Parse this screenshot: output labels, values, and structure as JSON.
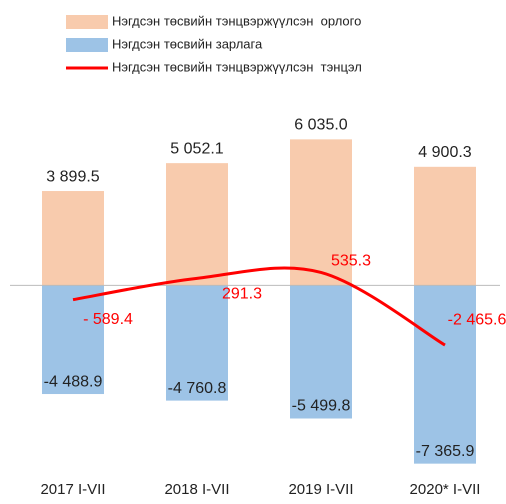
{
  "chart_data": {
    "type": "bar",
    "categories": [
      "2017 I-VII",
      "2018 I-VII",
      "2019 I-VII",
      "2020* I-VII"
    ],
    "series": [
      {
        "name": "Нэгдсэн төсвийн тэнцвэржүүлсэн  орлого",
        "color": "#f8cbad",
        "type": "bar",
        "values": [
          3899.5,
          5052.1,
          6035.0,
          4900.3
        ],
        "value_labels": [
          "3 899.5",
          "5 052.1",
          "6 035.0",
          "4 900.3"
        ]
      },
      {
        "name": "Нэгдсэн төсвийн зарлага",
        "color": "#9dc3e6",
        "type": "bar",
        "values": [
          -4488.9,
          -4760.8,
          -5499.8,
          -7365.9
        ],
        "value_labels": [
          "-4 488.9",
          "-4 760.8",
          "-5 499.8",
          "-7 365.9"
        ]
      },
      {
        "name": "Нэгдсэн төсвийн тэнцвэржүүлсэн  тэнцэл",
        "color": "#ff0000",
        "type": "line",
        "values": [
          -589.4,
          291.3,
          535.3,
          -2465.6
        ],
        "value_labels": [
          "- 589.4",
          "291.3",
          "535.3",
          "-2 465.6"
        ]
      }
    ],
    "ylim": [
      -8000,
      7000
    ]
  }
}
